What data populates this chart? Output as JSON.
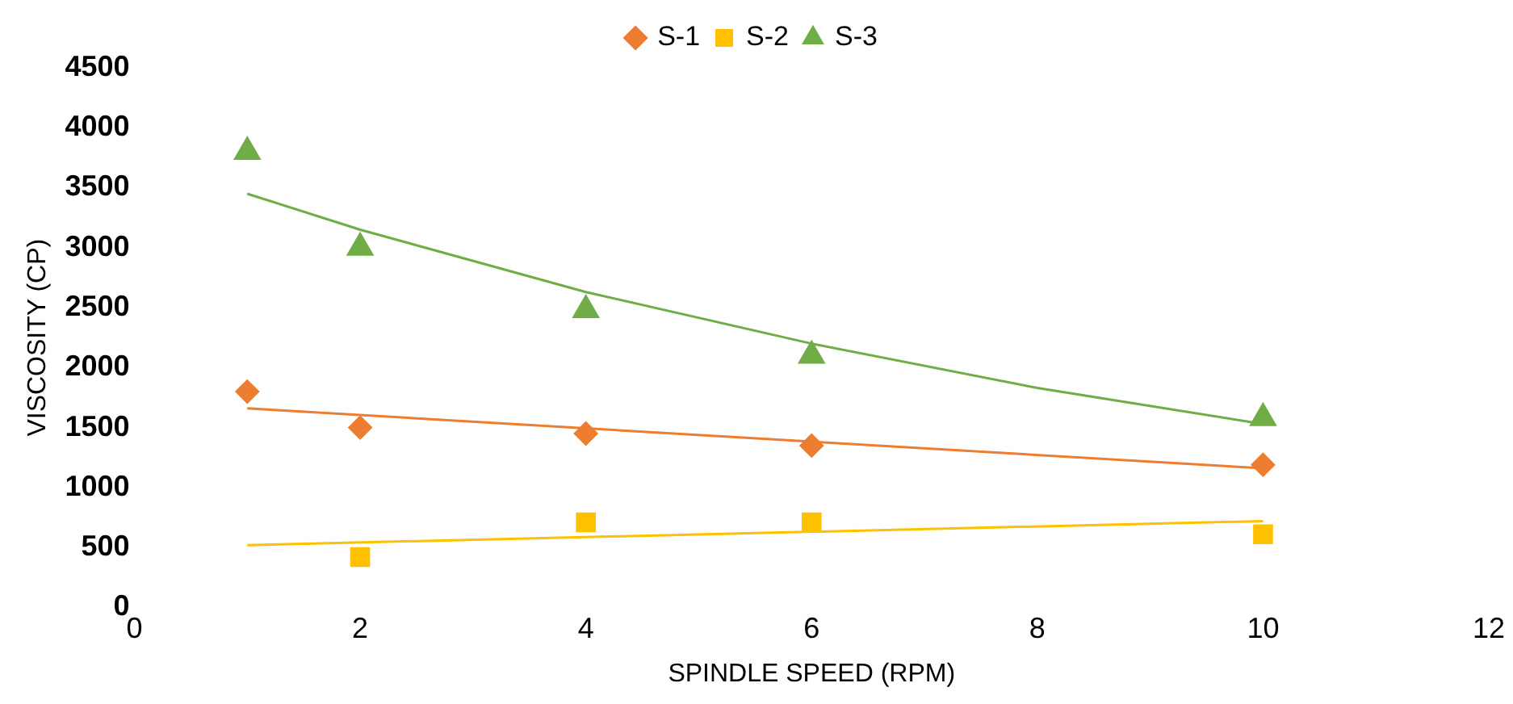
{
  "chart_data": {
    "type": "scatter",
    "xlabel": "SPINDLE SPEED (RPM)",
    "ylabel": "VISCOSITY (CP)",
    "xlim": [
      0,
      12
    ],
    "xticks": [
      0,
      2,
      4,
      6,
      8,
      10,
      12
    ],
    "ylim": [
      0,
      4500
    ],
    "yticks": [
      0,
      500,
      1000,
      1500,
      2000,
      2500,
      3000,
      3500,
      4000,
      4500
    ],
    "grid": false,
    "legend": "top",
    "series": [
      {
        "name": "S-1",
        "color": "#ed7d31",
        "marker": "diamond",
        "x": [
          1,
          2,
          4,
          6,
          10
        ],
        "values": [
          1800,
          1500,
          1450,
          1350,
          1190
        ]
      },
      {
        "name": "S-2",
        "color": "#ffc000",
        "marker": "square",
        "x": [
          2,
          4,
          6,
          10
        ],
        "values": [
          420,
          710,
          710,
          610
        ]
      },
      {
        "name": "S-3",
        "color": "#70ad47",
        "marker": "triangle",
        "x": [
          1,
          2,
          4,
          6,
          10
        ],
        "values": [
          3800,
          3000,
          2480,
          2100,
          1580
        ]
      },
      {
        "type": "line",
        "color": "#ed7d31",
        "marker": "none",
        "x": [
          1,
          10
        ],
        "values": [
          1660,
          1160
        ]
      },
      {
        "type": "line",
        "color": "#ffc000",
        "marker": "none",
        "x": [
          1,
          10
        ],
        "values": [
          520,
          720
        ]
      },
      {
        "type": "line",
        "color": "#70ad47",
        "marker": "none",
        "x": [
          1,
          2,
          4,
          6,
          8,
          10
        ],
        "values": [
          3450,
          3150,
          2630,
          2200,
          1830,
          1530
        ]
      }
    ]
  }
}
